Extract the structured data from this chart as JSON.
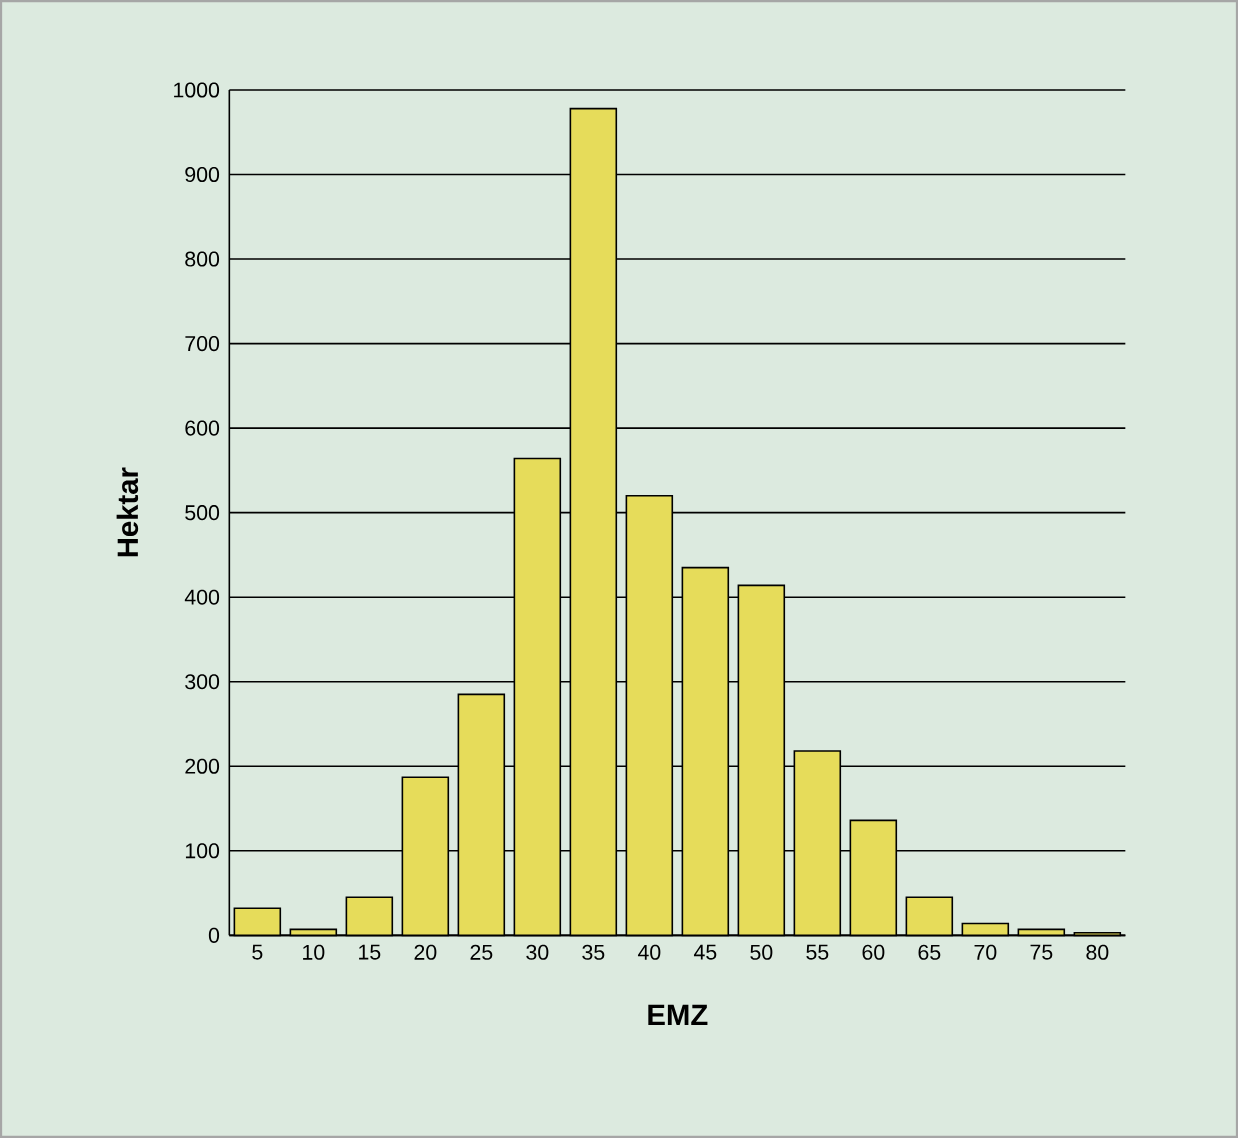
{
  "chart_data": {
    "type": "bar",
    "xlabel": "EMZ",
    "ylabel": "Hektar",
    "categories": [
      "5",
      "10",
      "15",
      "20",
      "25",
      "30",
      "35",
      "40",
      "45",
      "50",
      "55",
      "60",
      "65",
      "70",
      "75",
      "80"
    ],
    "values": [
      32,
      7,
      45,
      187,
      285,
      564,
      978,
      520,
      435,
      414,
      218,
      136,
      45,
      14,
      7,
      3
    ],
    "color": "#e6dc5a",
    "ylim": [
      0,
      1000
    ],
    "yticks": [
      0,
      100,
      200,
      300,
      400,
      500,
      600,
      700,
      800,
      900,
      1000
    ],
    "grid": "y"
  }
}
